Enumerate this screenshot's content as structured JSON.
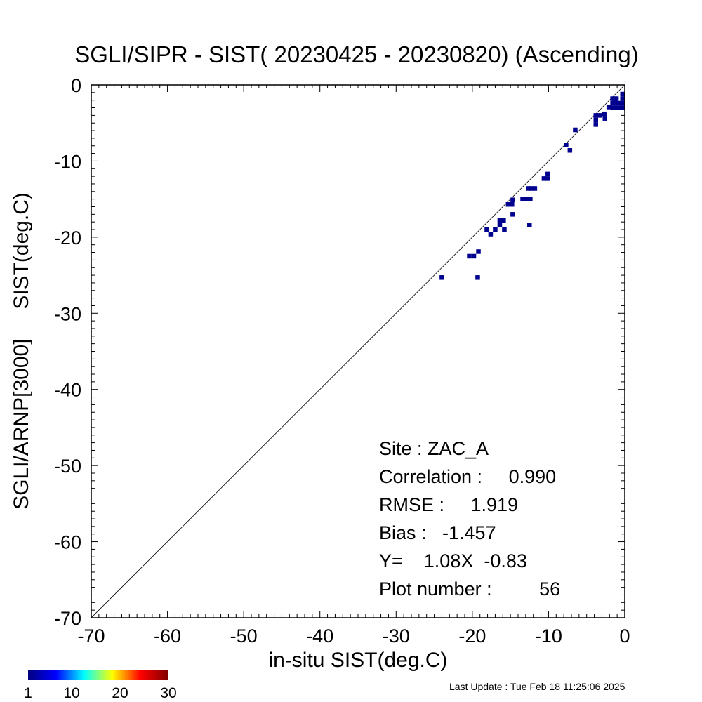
{
  "chart_data": {
    "type": "scatter",
    "title": "SGLI/SIPR - SIST( 20230425 - 20230820) (Ascending)",
    "xlabel": "in-situ SIST(deg.C)",
    "ylabel": "SGLI/ARNP[3000]     SIST(deg.C)",
    "xlim": [
      -70,
      0
    ],
    "ylim": [
      -70,
      0
    ],
    "xticks": [
      -70,
      -60,
      -50,
      -40,
      -30,
      -20,
      -10,
      0
    ],
    "yticks": [
      0,
      -10,
      -20,
      -30,
      -40,
      -50,
      -60,
      -70
    ],
    "reference_line": "1:1",
    "grid": false,
    "point_color": "#00008f",
    "cell_size": 0.6,
    "points": [
      [
        -24.0,
        -25.3
      ],
      [
        -19.3,
        -25.3
      ],
      [
        -20.4,
        -22.5
      ],
      [
        -19.8,
        -22.5
      ],
      [
        -19.2,
        -21.9
      ],
      [
        -18.1,
        -19.0
      ],
      [
        -17.6,
        -19.6
      ],
      [
        -17.0,
        -19.0
      ],
      [
        -16.4,
        -18.4
      ],
      [
        -16.4,
        -17.8
      ],
      [
        -15.9,
        -17.8
      ],
      [
        -15.8,
        -19.0
      ],
      [
        -15.3,
        -15.7
      ],
      [
        -14.8,
        -15.7
      ],
      [
        -14.7,
        -15.1
      ],
      [
        -14.7,
        -17.0
      ],
      [
        -13.4,
        -15.0
      ],
      [
        -12.9,
        -15.0
      ],
      [
        -12.4,
        -15.0
      ],
      [
        -12.6,
        -13.6
      ],
      [
        -12.2,
        -13.6
      ],
      [
        -11.8,
        -13.6
      ],
      [
        -12.5,
        -18.4
      ],
      [
        -10.6,
        -12.3
      ],
      [
        -10.1,
        -12.3
      ],
      [
        -10.1,
        -11.7
      ],
      [
        -7.7,
        -7.9
      ],
      [
        -7.2,
        -8.6
      ],
      [
        -6.5,
        -5.9
      ],
      [
        -3.8,
        -4.0
      ],
      [
        -3.8,
        -4.6
      ],
      [
        -3.8,
        -5.2
      ],
      [
        -3.3,
        -4.0
      ],
      [
        -2.7,
        -3.8
      ],
      [
        -2.6,
        -4.4
      ],
      [
        -1.6,
        -1.8
      ],
      [
        -1.6,
        -2.4
      ],
      [
        -1.6,
        -3.0
      ],
      [
        -1.1,
        -1.8
      ],
      [
        -1.1,
        -2.4
      ],
      [
        -1.1,
        -3.0
      ],
      [
        -0.6,
        -2.4
      ],
      [
        -0.6,
        -3.0
      ],
      [
        -0.3,
        -1.2
      ],
      [
        -0.3,
        -1.8
      ],
      [
        -0.3,
        -2.4
      ],
      [
        -0.3,
        -3.0
      ],
      [
        -2.1,
        -2.9
      ],
      [
        -1.3,
        -2.0
      ]
    ],
    "annotations": [
      "Site : ZAC_A",
      "Correlation :     0.990",
      "RMSE :     1.919",
      "Bias :   -1.457",
      "Y=    1.08X  -0.83",
      "Plot number :         56"
    ],
    "stats": {
      "site": "ZAC_A",
      "correlation": 0.99,
      "rmse": 1.919,
      "bias": -1.457,
      "slope": 1.08,
      "intercept": -0.83,
      "plot_number": 56
    },
    "colorbar": {
      "min": 1,
      "max": 30,
      "tick_labels": [
        "1",
        "10",
        "20",
        "30"
      ],
      "tick_values": [
        1,
        10,
        20,
        30
      ],
      "colormap": "jet",
      "stops": [
        "#00007f",
        "#0000ff",
        "#00ffff",
        "#ffff00",
        "#ff0000",
        "#7f0000"
      ]
    }
  },
  "footer": {
    "last_update": "Last Update : Tue Feb 18 11:25:06 2025"
  }
}
